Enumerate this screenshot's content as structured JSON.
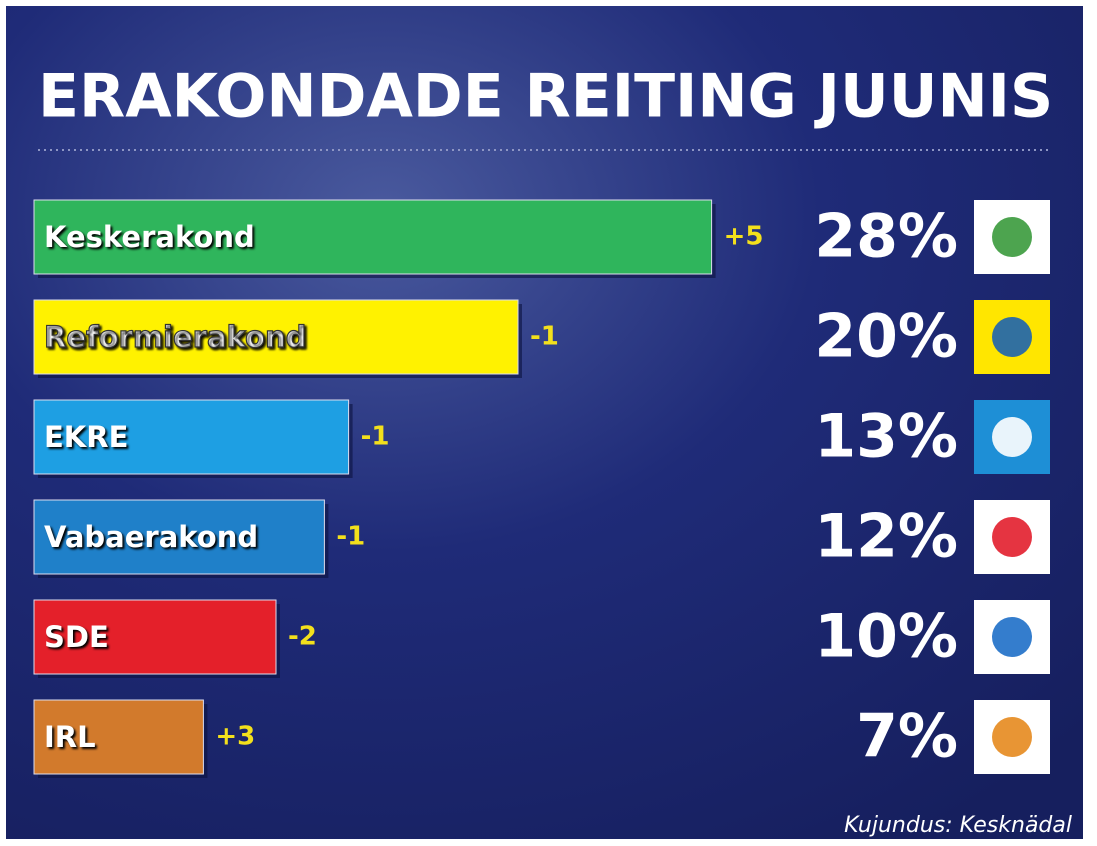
{
  "chart_data": {
    "type": "bar",
    "title": "ERAKONDADE REITING JUUNIS",
    "categories": [
      "Keskerakond",
      "Reformierakond",
      "EKRE",
      "Vabaerakond",
      "SDE",
      "IRL"
    ],
    "values": [
      28,
      20,
      13,
      12,
      10,
      7
    ],
    "value_labels": [
      "28%",
      "20%",
      "13%",
      "12%",
      "10%",
      "7%"
    ],
    "colors": [
      "#2fb55c",
      "#fff200",
      "#1e9fe3",
      "#1f80c9",
      "#e4202a",
      "#d27a2c"
    ],
    "changes": {
      "values": [
        5,
        -1,
        -1,
        -1,
        -2,
        3
      ],
      "value_labels": [
        "+5",
        "-1",
        "-1",
        "-1",
        "-2",
        "+3"
      ]
    },
    "source": "Kujundus: Kesknädal"
  }
}
